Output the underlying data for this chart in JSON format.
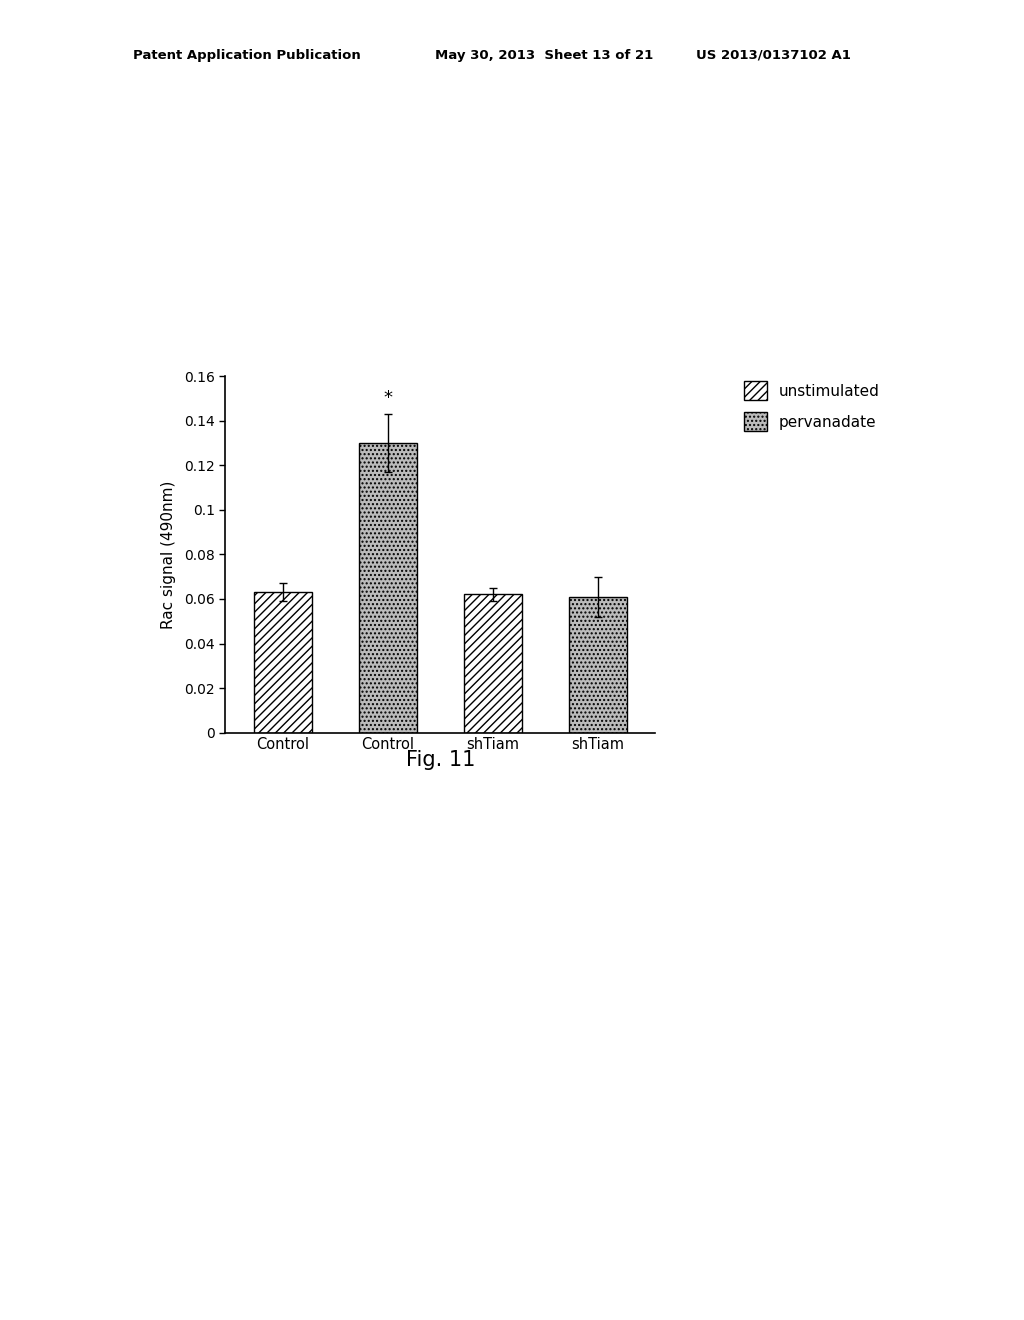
{
  "categories": [
    "Control",
    "Control",
    "shTiam",
    "shTiam"
  ],
  "values": [
    0.063,
    0.13,
    0.062,
    0.061
  ],
  "errors": [
    0.004,
    0.013,
    0.003,
    0.009
  ],
  "bar_types": [
    "unstimulated",
    "pervanadate",
    "unstimulated",
    "pervanadate"
  ],
  "ylabel": "Rac signal (490nm)",
  "ylim": [
    0,
    0.16
  ],
  "yticks": [
    0,
    0.02,
    0.04,
    0.06,
    0.08,
    0.1,
    0.12,
    0.14,
    0.16
  ],
  "fig_caption": "Fig. 11",
  "star_bar_index": 1,
  "header_line1": "Patent Application Publication",
  "header_line2": "May 30, 2013  Sheet 13 of 21",
  "header_line3": "US 2013/0137102 A1",
  "background_color": "#ffffff",
  "bar_width": 0.55,
  "legend_labels": [
    "unstimulated",
    "pervanadate"
  ]
}
